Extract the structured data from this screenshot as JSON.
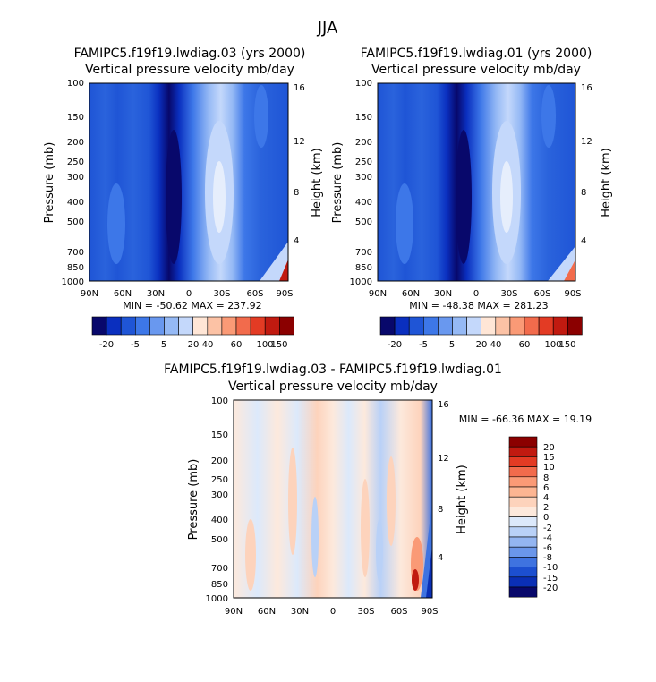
{
  "figure_title": "JJA",
  "chart_data": [
    {
      "type": "heatmap",
      "title": "FAMIPC5.f19f19.lwdiag.03 (yrs 2000)",
      "subtitle": "Vertical pressure velocity mb/day",
      "xlabel": "",
      "ylabel": "Pressure (mb)",
      "ylabel_right": "Height (km)",
      "x_ticks": [
        "90N",
        "60N",
        "30N",
        "0",
        "30S",
        "60S",
        "90S"
      ],
      "y_ticks": [
        "100",
        "150",
        "200",
        "250",
        "300",
        "400",
        "500",
        "700",
        "850",
        "1000"
      ],
      "y_right_ticks": [
        "16",
        "12",
        "8",
        "4"
      ],
      "ylim": [
        1000,
        100
      ],
      "stats": "MIN = -50.62   MAX = 237.92",
      "colorbar_levels": [
        "-20",
        "-5",
        "5",
        "20",
        "40",
        "60",
        "100",
        "150"
      ],
      "colorbar_colors": [
        "#08086b",
        "#0a2fbf",
        "#1f55d6",
        "#3d77e8",
        "#6998ef",
        "#95b9f5",
        "#c4d8fb",
        "#ffe6d6",
        "#fcc2a5",
        "#fa9a76",
        "#f26b4c",
        "#e33b24",
        "#c11a10",
        "#8b0000"
      ]
    },
    {
      "type": "heatmap",
      "title": "FAMIPC5.f19f19.lwdiag.01 (yrs 2000)",
      "subtitle": "Vertical pressure velocity mb/day",
      "xlabel": "",
      "ylabel": "Pressure (mb)",
      "ylabel_right": "Height (km)",
      "x_ticks": [
        "90N",
        "60N",
        "30N",
        "0",
        "30S",
        "60S",
        "90S"
      ],
      "y_ticks": [
        "100",
        "150",
        "200",
        "250",
        "300",
        "400",
        "500",
        "700",
        "850",
        "1000"
      ],
      "y_right_ticks": [
        "16",
        "12",
        "8",
        "4"
      ],
      "ylim": [
        1000,
        100
      ],
      "stats": "MIN = -48.38   MAX = 281.23",
      "colorbar_levels": [
        "-20",
        "-5",
        "5",
        "20",
        "40",
        "60",
        "100",
        "150"
      ],
      "colorbar_colors": [
        "#08086b",
        "#0a2fbf",
        "#1f55d6",
        "#3d77e8",
        "#6998ef",
        "#95b9f5",
        "#c4d8fb",
        "#ffe6d6",
        "#fcc2a5",
        "#fa9a76",
        "#f26b4c",
        "#e33b24",
        "#c11a10",
        "#8b0000"
      ]
    },
    {
      "type": "heatmap",
      "title": "FAMIPC5.f19f19.lwdiag.03 - FAMIPC5.f19f19.lwdiag.01",
      "subtitle": "Vertical pressure velocity mb/day",
      "xlabel": "",
      "ylabel": "Pressure (mb)",
      "ylabel_right": "Height (km)",
      "x_ticks": [
        "90N",
        "60N",
        "30N",
        "0",
        "30S",
        "60S",
        "90S"
      ],
      "y_ticks": [
        "100",
        "150",
        "200",
        "250",
        "300",
        "400",
        "500",
        "700",
        "850",
        "1000"
      ],
      "y_right_ticks": [
        "16",
        "12",
        "8",
        "4"
      ],
      "ylim": [
        1000,
        100
      ],
      "stats": "MIN = -66.36   MAX =  19.19",
      "colorbar_levels": [
        "20",
        "15",
        "10",
        "8",
        "6",
        "4",
        "2",
        "0",
        "-2",
        "-4",
        "-6",
        "-8",
        "-10",
        "-15",
        "-20"
      ],
      "colorbar_colors": [
        "#8b0000",
        "#c11a10",
        "#e33b24",
        "#f26b4c",
        "#fa9a76",
        "#fcb592",
        "#fdd3bc",
        "#fde9dc",
        "#dce9fb",
        "#b9d1f7",
        "#93b5f1",
        "#6a96ea",
        "#3f73e0",
        "#1c4fd0",
        "#0a2fb5",
        "#08086b"
      ]
    }
  ]
}
